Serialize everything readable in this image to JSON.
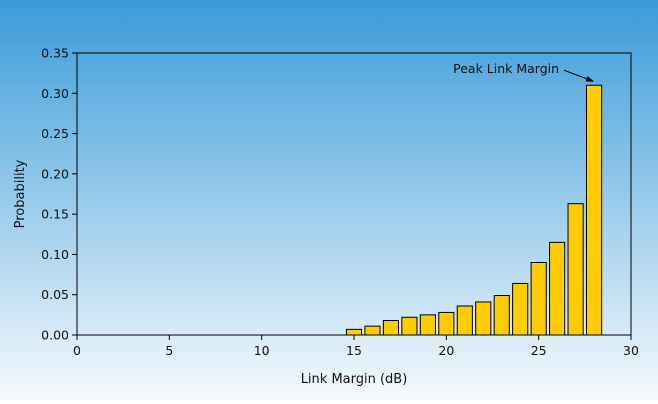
{
  "chart_data": {
    "type": "bar",
    "xlabel": "Link Margin (dB)",
    "ylabel": "Probability",
    "xlim": [
      0,
      30
    ],
    "ylim": [
      0,
      0.35
    ],
    "xticks": [
      0,
      5,
      10,
      15,
      20,
      25,
      30
    ],
    "yticks": [
      0,
      0.05,
      0.1,
      0.15,
      0.2,
      0.25,
      0.3,
      0.35
    ],
    "ytick_labels": [
      "0.00",
      "0.05",
      "0.10",
      "0.15",
      "0.20",
      "0.25",
      "0.30",
      "0.35"
    ],
    "grid": false,
    "x": [
      15,
      16,
      17,
      18,
      19,
      20,
      21,
      22,
      23,
      24,
      25,
      26,
      27,
      28
    ],
    "values": [
      0.007,
      0.011,
      0.018,
      0.022,
      0.025,
      0.028,
      0.036,
      0.041,
      0.049,
      0.064,
      0.09,
      0.115,
      0.163,
      0.31
    ],
    "annotation": {
      "text": "Peak Link Margin",
      "x": 28,
      "y": 0.31
    },
    "colors": {
      "bar_fill": "#FFCC00",
      "bar_stroke": "#000000",
      "background_top": "#3A9BD9",
      "background_bottom": "#F6FAFD",
      "plot_border": "#000000"
    }
  }
}
